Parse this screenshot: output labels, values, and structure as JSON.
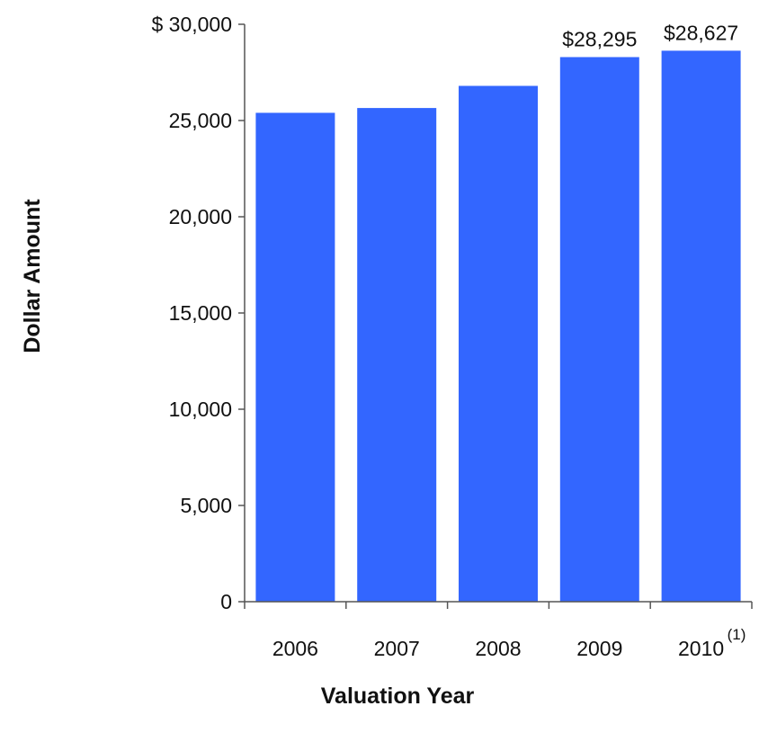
{
  "chart_data": {
    "type": "bar",
    "title": "",
    "xlabel": "Valuation Year",
    "ylabel": "Dollar Amount",
    "categories": [
      "2006",
      "2007",
      "2008",
      "2009",
      "2010"
    ],
    "category_footnotes": [
      "",
      "",
      "",
      "",
      "(1)"
    ],
    "values": [
      25400,
      25650,
      26800,
      28295,
      28627
    ],
    "data_labels": [
      "",
      "",
      "",
      "$28,295",
      "$28,627"
    ],
    "ylim": [
      0,
      30000
    ],
    "yticks": [
      0,
      5000,
      10000,
      15000,
      20000,
      25000,
      30000
    ],
    "ytick_labels": [
      "0",
      "5,000",
      "10,000",
      "15,000",
      "20,000",
      "25,000",
      "$ 30,000"
    ],
    "grid": false,
    "legend": "none",
    "bar_color": "#3366ff"
  }
}
